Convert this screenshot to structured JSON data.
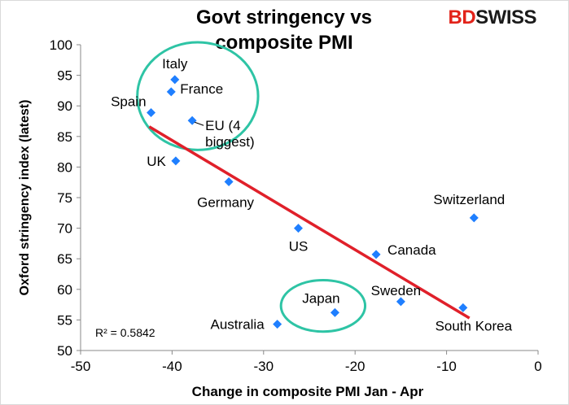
{
  "brand": {
    "part1": "BD",
    "part2": "SWISS",
    "accent": "#e2231a"
  },
  "chart_data": {
    "type": "scatter",
    "title_lines": [
      "Govt stringency vs",
      "composite PMI"
    ],
    "xlabel": "Change in composite PMI Jan - Apr",
    "ylabel": "Oxford stringency index (latest)",
    "xlim": [
      -50,
      0
    ],
    "ylim": [
      50,
      100
    ],
    "xticks": [
      -50,
      -40,
      -30,
      -20,
      -10,
      0
    ],
    "yticks": [
      50,
      55,
      60,
      65,
      70,
      75,
      80,
      85,
      90,
      95,
      100
    ],
    "grid": false,
    "marker_color": "#1f7fff",
    "trendline_color": "#e0202a",
    "highlight_color": "#2ec4a5",
    "points": [
      {
        "label": "Italy",
        "x": -39.7,
        "y": 94.3
      },
      {
        "label": "France",
        "x": -40.1,
        "y": 92.3
      },
      {
        "label": "Spain",
        "x": -42.3,
        "y": 88.9
      },
      {
        "label": "EU (4 biggest)",
        "label_lines": [
          "EU (4",
          "biggest)"
        ],
        "x": -37.8,
        "y": 87.6
      },
      {
        "label": "UK",
        "x": -39.6,
        "y": 81.0
      },
      {
        "label": "Germany",
        "x": -33.8,
        "y": 77.6
      },
      {
        "label": "US",
        "x": -26.2,
        "y": 70.0
      },
      {
        "label": "Canada",
        "x": -17.7,
        "y": 65.7
      },
      {
        "label": "Switzerland",
        "x": -7.0,
        "y": 71.7
      },
      {
        "label": "Japan",
        "x": -22.2,
        "y": 56.2
      },
      {
        "label": "Sweden",
        "x": -15.0,
        "y": 58.0
      },
      {
        "label": "Australia",
        "x": -28.5,
        "y": 54.3
      },
      {
        "label": "South Korea",
        "x": -8.2,
        "y": 57.0
      }
    ],
    "trendline": {
      "x": [
        -42.5,
        -7.5
      ],
      "y": [
        86.6,
        55.3
      ]
    },
    "annotation": "R² = 0.5842",
    "highlights": [
      {
        "cx": -37.2,
        "cy": 91.6,
        "rx": 6.6,
        "ry": 8.8
      },
      {
        "cx": -23.5,
        "cy": 57.3,
        "rx": 4.6,
        "ry": 4.2
      }
    ]
  }
}
